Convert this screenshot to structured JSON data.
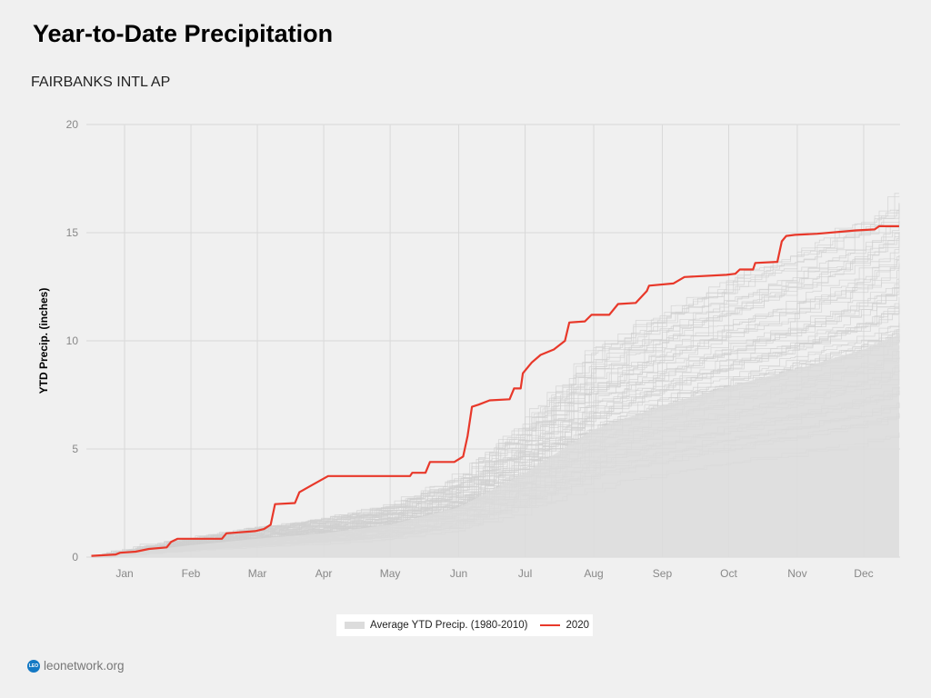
{
  "header": {
    "title": "Year-to-Date Precipitation",
    "station": "FAIRBANKS INTL AP"
  },
  "footer": {
    "logo_text": "LEO",
    "site": "leonetwork.org"
  },
  "colors": {
    "series_2020": "#e8382a",
    "history": "#cfcfcf",
    "average_fill": "#dcdcdc",
    "grid": "#d9d9d9"
  },
  "chart_data": {
    "type": "line",
    "title": "Year-to-Date Precipitation",
    "subtitle": "FAIRBANKS INTL AP",
    "xlabel": "",
    "ylabel": "YTD Precip. (inches)",
    "xlim": [
      0,
      365
    ],
    "ylim": [
      0,
      20
    ],
    "yticks": [
      0,
      5,
      10,
      15,
      20
    ],
    "xticks": [
      {
        "label": "Jan",
        "day": 15
      },
      {
        "label": "Feb",
        "day": 45
      },
      {
        "label": "Mar",
        "day": 75
      },
      {
        "label": "Apr",
        "day": 105
      },
      {
        "label": "May",
        "day": 135
      },
      {
        "label": "Jun",
        "day": 166
      },
      {
        "label": "Jul",
        "day": 196
      },
      {
        "label": "Aug",
        "day": 227
      },
      {
        "label": "Sep",
        "day": 258
      },
      {
        "label": "Oct",
        "day": 288
      },
      {
        "label": "Nov",
        "day": 319
      },
      {
        "label": "Dec",
        "day": 349
      }
    ],
    "grid": true,
    "legend_position": "bottom-center",
    "legend": [
      "Average YTD Precip. (1980-2010)",
      "2020"
    ],
    "historical_years_count": 80,
    "series": [
      {
        "name": "Average YTD Precip. (1980-2010)",
        "type": "area",
        "x": [
          0,
          15,
          45,
          75,
          105,
          135,
          166,
          196,
          227,
          258,
          288,
          319,
          349,
          365
        ],
        "y": [
          0,
          0.2,
          0.55,
          0.85,
          1.1,
          1.5,
          2.3,
          3.9,
          5.9,
          7.0,
          7.9,
          8.7,
          9.6,
          10.3
        ]
      },
      {
        "name": "2020",
        "type": "line",
        "x": [
          0,
          11,
          13,
          20,
          26,
          34,
          36,
          39,
          59,
          61,
          74,
          78,
          81,
          83,
          92,
          94,
          100,
          107,
          144,
          145,
          151,
          153,
          164,
          168,
          170,
          172,
          175,
          180,
          189,
          191,
          194,
          195,
          199,
          203,
          209,
          214,
          216,
          223,
          226,
          234,
          238,
          246,
          251,
          252,
          263,
          268,
          287,
          291,
          293,
          299,
          300,
          310,
          312,
          314,
          318,
          328,
          345,
          354,
          356,
          365
        ],
        "y": [
          0.06,
          0.12,
          0.2,
          0.25,
          0.38,
          0.45,
          0.7,
          0.85,
          0.85,
          1.1,
          1.2,
          1.3,
          1.5,
          2.45,
          2.5,
          3.0,
          3.35,
          3.75,
          3.75,
          3.9,
          3.9,
          4.4,
          4.4,
          4.65,
          5.6,
          6.95,
          7.05,
          7.25,
          7.3,
          7.8,
          7.8,
          8.5,
          9.0,
          9.35,
          9.6,
          10.0,
          10.85,
          10.9,
          11.2,
          11.2,
          11.7,
          11.75,
          12.3,
          12.55,
          12.65,
          12.95,
          13.05,
          13.1,
          13.3,
          13.3,
          13.6,
          13.65,
          14.6,
          14.85,
          14.9,
          14.95,
          15.1,
          15.15,
          15.3,
          15.3
        ]
      }
    ]
  }
}
